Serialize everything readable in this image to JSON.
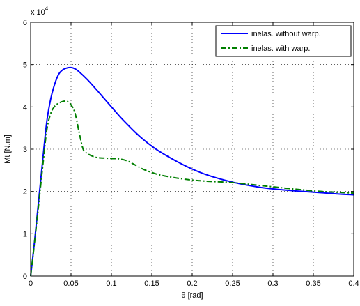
{
  "chart_data": {
    "type": "line",
    "xlabel": "θ [rad]",
    "ylabel": "Mt [N.m]",
    "xlim": [
      0,
      0.4
    ],
    "ylim": [
      0,
      60000
    ],
    "x_ticks": [
      0,
      0.05,
      0.1,
      0.15,
      0.2,
      0.25,
      0.3,
      0.35,
      0.4
    ],
    "x_tick_labels": [
      "0",
      "0.05",
      "0.1",
      "0.15",
      "0.2",
      "0.25",
      "0.3",
      "0.35",
      "0.4"
    ],
    "y_ticks": [
      0,
      10000,
      20000,
      30000,
      40000,
      50000,
      60000
    ],
    "y_tick_labels": [
      "0",
      "1",
      "2",
      "3",
      "4",
      "5",
      "6"
    ],
    "y_multiplier": {
      "base": "x 10",
      "exponent": "4"
    },
    "grid": true,
    "legend_position": "top-right",
    "series": [
      {
        "name": "inelas. without warp.",
        "color": "#0000ff",
        "line_style": "solid",
        "x": [
          0,
          0.005,
          0.01,
          0.015,
          0.02,
          0.025,
          0.03,
          0.035,
          0.04,
          0.045,
          0.05,
          0.055,
          0.06,
          0.07,
          0.08,
          0.09,
          0.1,
          0.11,
          0.12,
          0.13,
          0.14,
          0.15,
          0.16,
          0.18,
          0.2,
          0.22,
          0.25,
          0.28,
          0.3,
          0.33,
          0.36,
          0.38,
          0.4
        ],
        "y": [
          0,
          8500,
          18000,
          27500,
          36500,
          42000,
          45500,
          47800,
          48800,
          49200,
          49300,
          49000,
          48300,
          46500,
          44400,
          42200,
          40000,
          37800,
          35800,
          33900,
          32200,
          30700,
          29400,
          27200,
          25300,
          23800,
          22200,
          21100,
          20600,
          20100,
          19700,
          19400,
          19200
        ]
      },
      {
        "name": "inelas. with warp.",
        "color": "#007f00",
        "line_style": "dash-dot",
        "x": [
          0,
          0.005,
          0.01,
          0.015,
          0.02,
          0.025,
          0.03,
          0.035,
          0.04,
          0.045,
          0.05,
          0.055,
          0.06,
          0.065,
          0.07,
          0.08,
          0.09,
          0.1,
          0.11,
          0.12,
          0.13,
          0.14,
          0.15,
          0.16,
          0.18,
          0.2,
          0.22,
          0.25,
          0.28,
          0.3,
          0.33,
          0.36,
          0.38,
          0.4
        ],
        "y": [
          0,
          8200,
          17000,
          26000,
          34500,
          38500,
          40200,
          40900,
          41300,
          41300,
          40500,
          38500,
          34000,
          30000,
          29000,
          28100,
          27900,
          27800,
          27700,
          27200,
          26200,
          25200,
          24500,
          23900,
          23200,
          22700,
          22400,
          22100,
          21500,
          21100,
          20500,
          20000,
          19800,
          19600
        ]
      }
    ]
  }
}
